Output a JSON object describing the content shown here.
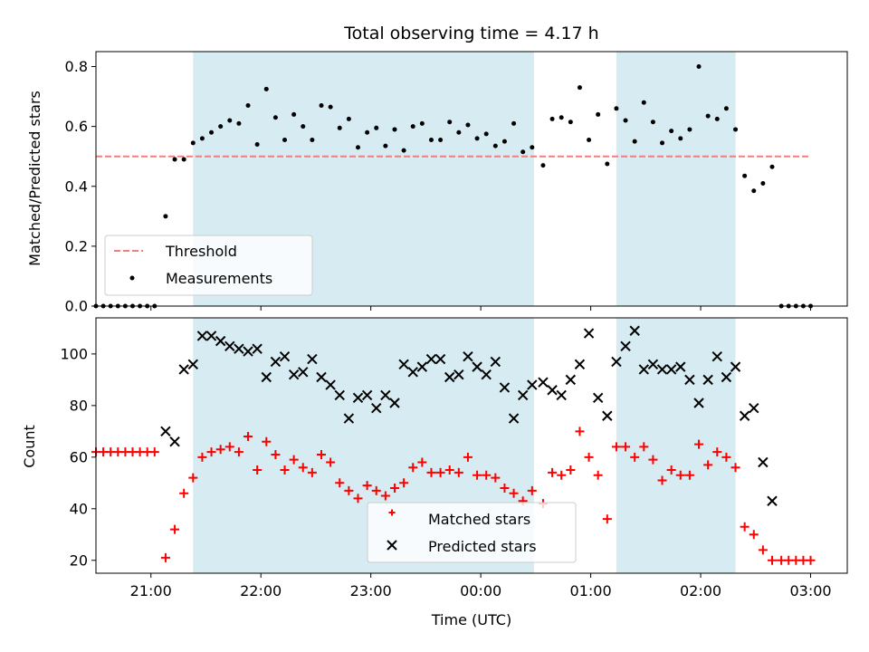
{
  "chart_data": [
    {
      "type": "scatter",
      "title": "Total observing time = 4.17 h",
      "ylabel": "Matched/Predicted stars",
      "xlabel": "",
      "xlim": [
        "20:30",
        "03:20"
      ],
      "ylim": [
        0,
        0.85
      ],
      "yticks": [
        "0.0",
        "0.2",
        "0.4",
        "0.6",
        "0.8"
      ],
      "grid": false,
      "legend": {
        "placement": "lower-left",
        "entries": [
          "Threshold",
          "Measurements"
        ]
      },
      "observing_windows": [
        [
          "21:23",
          "00:29"
        ],
        [
          "01:14",
          "02:19"
        ]
      ],
      "threshold": {
        "name": "Threshold",
        "y": 0.5,
        "x_range": [
          "20:30",
          "03:00"
        ],
        "color": "#f08080"
      },
      "series": [
        {
          "name": "Measurements",
          "color": "#000000",
          "points": [
            [
              "20:30",
              0
            ],
            [
              "20:34",
              0
            ],
            [
              "20:38",
              0
            ],
            [
              "20:42",
              0
            ],
            [
              "20:46",
              0
            ],
            [
              "20:50",
              0
            ],
            [
              "20:54",
              0
            ],
            [
              "20:58",
              0
            ],
            [
              "21:02",
              0
            ],
            [
              "21:08",
              0.3
            ],
            [
              "21:13",
              0.49
            ],
            [
              "21:18",
              0.49
            ],
            [
              "21:23",
              0.545
            ],
            [
              "21:28",
              0.56
            ],
            [
              "21:33",
              0.58
            ],
            [
              "21:38",
              0.6
            ],
            [
              "21:43",
              0.62
            ],
            [
              "21:48",
              0.61
            ],
            [
              "21:53",
              0.67
            ],
            [
              "21:58",
              0.54
            ],
            [
              "22:03",
              0.725
            ],
            [
              "22:08",
              0.63
            ],
            [
              "22:13",
              0.555
            ],
            [
              "22:18",
              0.64
            ],
            [
              "22:23",
              0.6
            ],
            [
              "22:28",
              0.555
            ],
            [
              "22:33",
              0.67
            ],
            [
              "22:38",
              0.665
            ],
            [
              "22:43",
              0.595
            ],
            [
              "22:48",
              0.625
            ],
            [
              "22:53",
              0.53
            ],
            [
              "22:58",
              0.58
            ],
            [
              "23:03",
              0.595
            ],
            [
              "23:08",
              0.535
            ],
            [
              "23:13",
              0.59
            ],
            [
              "23:18",
              0.52
            ],
            [
              "23:23",
              0.6
            ],
            [
              "23:28",
              0.61
            ],
            [
              "23:33",
              0.555
            ],
            [
              "23:38",
              0.555
            ],
            [
              "23:43",
              0.615
            ],
            [
              "23:48",
              0.58
            ],
            [
              "23:53",
              0.605
            ],
            [
              "23:58",
              0.56
            ],
            [
              "00:03",
              0.575
            ],
            [
              "00:08",
              0.535
            ],
            [
              "00:13",
              0.55
            ],
            [
              "00:18",
              0.61
            ],
            [
              "00:23",
              0.515
            ],
            [
              "00:28",
              0.53
            ],
            [
              "00:34",
              0.47
            ],
            [
              "00:39",
              0.625
            ],
            [
              "00:44",
              0.63
            ],
            [
              "00:49",
              0.615
            ],
            [
              "00:54",
              0.73
            ],
            [
              "00:59",
              0.555
            ],
            [
              "01:04",
              0.64
            ],
            [
              "01:09",
              0.475
            ],
            [
              "01:14",
              0.66
            ],
            [
              "01:19",
              0.62
            ],
            [
              "01:24",
              0.55
            ],
            [
              "01:29",
              0.68
            ],
            [
              "01:34",
              0.615
            ],
            [
              "01:39",
              0.545
            ],
            [
              "01:44",
              0.585
            ],
            [
              "01:49",
              0.56
            ],
            [
              "01:54",
              0.59
            ],
            [
              "01:59",
              0.8
            ],
            [
              "02:04",
              0.635
            ],
            [
              "02:09",
              0.625
            ],
            [
              "02:14",
              0.66
            ],
            [
              "02:19",
              0.59
            ],
            [
              "02:24",
              0.435
            ],
            [
              "02:29",
              0.385
            ],
            [
              "02:34",
              0.41
            ],
            [
              "02:39",
              0.465
            ],
            [
              "02:44",
              0
            ],
            [
              "02:48",
              0
            ],
            [
              "02:52",
              0
            ],
            [
              "02:56",
              0
            ],
            [
              "03:00",
              0
            ]
          ]
        }
      ]
    },
    {
      "type": "scatter",
      "title": "",
      "ylabel": "Count",
      "xlabel": "Time (UTC)",
      "xlim": [
        "20:30",
        "03:20"
      ],
      "ylim": [
        15,
        114
      ],
      "yticks": [
        "20",
        "40",
        "60",
        "80",
        "100"
      ],
      "xticks": [
        "21:00",
        "22:00",
        "23:00",
        "00:00",
        "01:00",
        "02:00",
        "03:00"
      ],
      "grid": false,
      "legend": {
        "placement": "lower-center",
        "entries": [
          "Matched stars",
          "Predicted stars"
        ]
      },
      "observing_windows": [
        [
          "21:23",
          "00:29"
        ],
        [
          "01:14",
          "02:19"
        ]
      ],
      "series": [
        {
          "name": "Matched stars",
          "marker": "+",
          "color": "#ff0000",
          "points": [
            [
              "20:30",
              62
            ],
            [
              "20:34",
              62
            ],
            [
              "20:38",
              62
            ],
            [
              "20:42",
              62
            ],
            [
              "20:46",
              62
            ],
            [
              "20:50",
              62
            ],
            [
              "20:54",
              62
            ],
            [
              "20:58",
              62
            ],
            [
              "21:02",
              62
            ],
            [
              "21:08",
              21
            ],
            [
              "21:13",
              32
            ],
            [
              "21:18",
              46
            ],
            [
              "21:23",
              52
            ],
            [
              "21:28",
              60
            ],
            [
              "21:33",
              62
            ],
            [
              "21:38",
              63
            ],
            [
              "21:43",
              64
            ],
            [
              "21:48",
              62
            ],
            [
              "21:53",
              68
            ],
            [
              "21:58",
              55
            ],
            [
              "22:03",
              66
            ],
            [
              "22:08",
              61
            ],
            [
              "22:13",
              55
            ],
            [
              "22:18",
              59
            ],
            [
              "22:23",
              56
            ],
            [
              "22:28",
              54
            ],
            [
              "22:33",
              61
            ],
            [
              "22:38",
              58
            ],
            [
              "22:43",
              50
            ],
            [
              "22:48",
              47
            ],
            [
              "22:53",
              44
            ],
            [
              "22:58",
              49
            ],
            [
              "23:03",
              47
            ],
            [
              "23:08",
              45
            ],
            [
              "23:13",
              48
            ],
            [
              "23:18",
              50
            ],
            [
              "23:23",
              56
            ],
            [
              "23:28",
              58
            ],
            [
              "23:33",
              54
            ],
            [
              "23:38",
              54
            ],
            [
              "23:43",
              55
            ],
            [
              "23:48",
              54
            ],
            [
              "23:53",
              60
            ],
            [
              "23:58",
              53
            ],
            [
              "00:03",
              53
            ],
            [
              "00:08",
              52
            ],
            [
              "00:13",
              48
            ],
            [
              "00:18",
              46
            ],
            [
              "00:23",
              43
            ],
            [
              "00:28",
              47
            ],
            [
              "00:34",
              42
            ],
            [
              "00:39",
              54
            ],
            [
              "00:44",
              53
            ],
            [
              "00:49",
              55
            ],
            [
              "00:54",
              70
            ],
            [
              "00:59",
              60
            ],
            [
              "01:04",
              53
            ],
            [
              "01:09",
              36
            ],
            [
              "01:14",
              64
            ],
            [
              "01:19",
              64
            ],
            [
              "01:24",
              60
            ],
            [
              "01:29",
              64
            ],
            [
              "01:34",
              59
            ],
            [
              "01:39",
              51
            ],
            [
              "01:44",
              55
            ],
            [
              "01:49",
              53
            ],
            [
              "01:54",
              53
            ],
            [
              "01:59",
              65
            ],
            [
              "02:04",
              57
            ],
            [
              "02:09",
              62
            ],
            [
              "02:14",
              60
            ],
            [
              "02:19",
              56
            ],
            [
              "02:24",
              33
            ],
            [
              "02:29",
              30
            ],
            [
              "02:34",
              24
            ],
            [
              "02:39",
              20
            ],
            [
              "02:44",
              20
            ],
            [
              "02:48",
              20
            ],
            [
              "02:52",
              20
            ],
            [
              "02:56",
              20
            ],
            [
              "03:00",
              20
            ]
          ]
        },
        {
          "name": "Predicted stars",
          "marker": "x",
          "color": "#000000",
          "points": [
            [
              "21:08",
              70
            ],
            [
              "21:13",
              66
            ],
            [
              "21:18",
              94
            ],
            [
              "21:23",
              96
            ],
            [
              "21:28",
              107
            ],
            [
              "21:33",
              107
            ],
            [
              "21:38",
              105
            ],
            [
              "21:43",
              103
            ],
            [
              "21:48",
              102
            ],
            [
              "21:53",
              101
            ],
            [
              "21:58",
              102
            ],
            [
              "22:03",
              91
            ],
            [
              "22:08",
              97
            ],
            [
              "22:13",
              99
            ],
            [
              "22:18",
              92
            ],
            [
              "22:23",
              93
            ],
            [
              "22:28",
              98
            ],
            [
              "22:33",
              91
            ],
            [
              "22:38",
              88
            ],
            [
              "22:43",
              84
            ],
            [
              "22:48",
              75
            ],
            [
              "22:53",
              83
            ],
            [
              "22:58",
              84
            ],
            [
              "23:03",
              79
            ],
            [
              "23:08",
              84
            ],
            [
              "23:13",
              81
            ],
            [
              "23:18",
              96
            ],
            [
              "23:23",
              93
            ],
            [
              "23:28",
              95
            ],
            [
              "23:33",
              98
            ],
            [
              "23:38",
              98
            ],
            [
              "23:43",
              91
            ],
            [
              "23:48",
              92
            ],
            [
              "23:53",
              99
            ],
            [
              "23:58",
              95
            ],
            [
              "00:03",
              92
            ],
            [
              "00:08",
              97
            ],
            [
              "00:13",
              87
            ],
            [
              "00:18",
              75
            ],
            [
              "00:23",
              84
            ],
            [
              "00:28",
              88
            ],
            [
              "00:34",
              89
            ],
            [
              "00:39",
              86
            ],
            [
              "00:44",
              84
            ],
            [
              "00:49",
              90
            ],
            [
              "00:54",
              96
            ],
            [
              "00:59",
              108
            ],
            [
              "01:04",
              83
            ],
            [
              "01:09",
              76
            ],
            [
              "01:14",
              97
            ],
            [
              "01:19",
              103
            ],
            [
              "01:24",
              109
            ],
            [
              "01:29",
              94
            ],
            [
              "01:34",
              96
            ],
            [
              "01:39",
              94
            ],
            [
              "01:44",
              94
            ],
            [
              "01:49",
              95
            ],
            [
              "01:54",
              90
            ],
            [
              "01:59",
              81
            ],
            [
              "02:04",
              90
            ],
            [
              "02:09",
              99
            ],
            [
              "02:14",
              91
            ],
            [
              "02:19",
              95
            ],
            [
              "02:24",
              76
            ],
            [
              "02:29",
              79
            ],
            [
              "02:34",
              58
            ],
            [
              "02:39",
              43
            ]
          ]
        }
      ]
    }
  ]
}
